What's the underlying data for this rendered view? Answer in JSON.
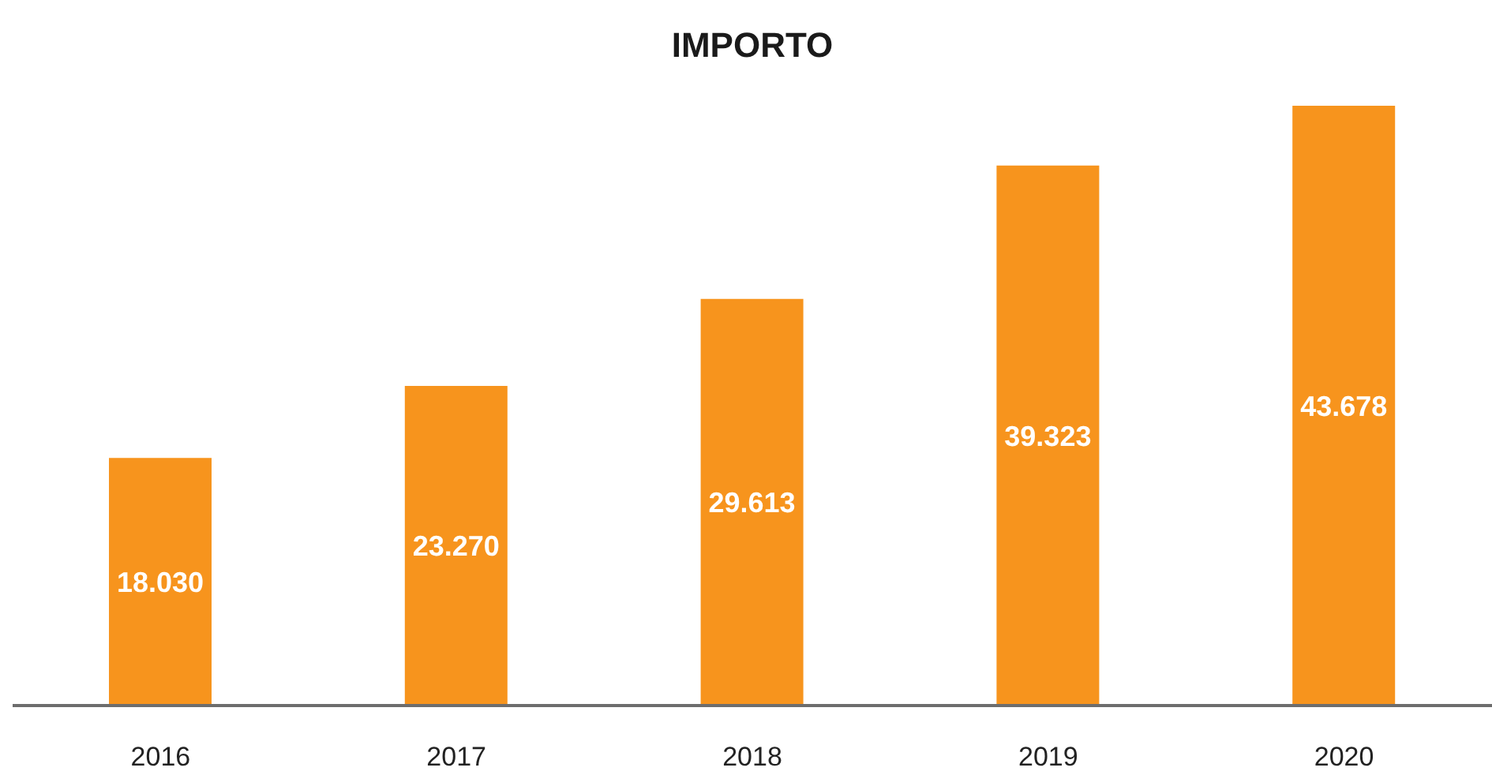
{
  "chart_data": {
    "type": "bar",
    "title": "IMPORTO",
    "categories": [
      "2016",
      "2017",
      "2018",
      "2019",
      "2020"
    ],
    "values": [
      18030,
      23270,
      29613,
      39323,
      43678
    ],
    "value_labels": [
      "18.030",
      "23.270",
      "29.613",
      "39.323",
      "43.678"
    ],
    "color": "#f7941d"
  }
}
